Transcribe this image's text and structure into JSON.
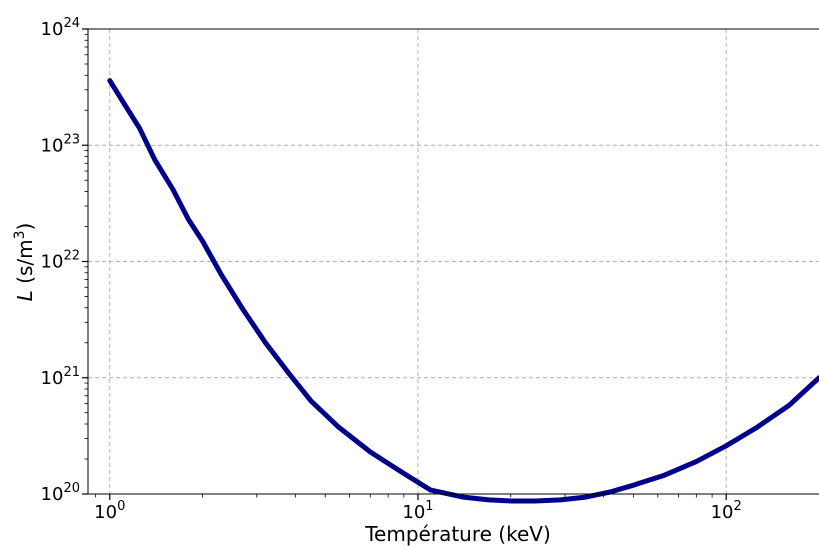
{
  "chart_data": {
    "type": "line",
    "title": "",
    "xlabel": "Température (keV)",
    "ylabel": {
      "italic": "L",
      "text": " (s/m",
      "sup": "3",
      "close": ")"
    },
    "xscale": "log",
    "yscale": "log",
    "xlim": [
      0.85,
      200
    ],
    "ylim": [
      1e+20,
      1e+24
    ],
    "grid": true,
    "legend": "none",
    "line_color": "#00008b",
    "x_ticks": [
      {
        "base": "10",
        "exp": "0",
        "value": 1
      },
      {
        "base": "10",
        "exp": "1",
        "value": 10
      },
      {
        "base": "10",
        "exp": "2",
        "value": 100
      }
    ],
    "y_ticks": [
      {
        "base": "10",
        "exp": "20",
        "value": 1e+20
      },
      {
        "base": "10",
        "exp": "21",
        "value": 1e+21
      },
      {
        "base": "10",
        "exp": "22",
        "value": 1e+22
      },
      {
        "base": "10",
        "exp": "23",
        "value": 1e+23
      },
      {
        "base": "10",
        "exp": "24",
        "value": 1e+24
      }
    ],
    "series": [
      {
        "x": [
          1.0,
          1.1,
          1.25,
          1.4,
          1.6,
          1.8,
          2.0,
          2.3,
          2.7,
          3.2,
          3.8,
          4.5,
          5.5,
          7.0,
          9.0,
          11,
          14,
          17,
          20,
          24,
          29,
          35,
          42,
          50,
          63,
          80,
          100,
          125,
          160,
          200
        ],
        "y": [
          3.6e+23,
          2.4e+23,
          1.4e+23,
          7.5e+22,
          4.2e+22,
          2.3e+22,
          1.5e+22,
          7.7e+21,
          3.9e+21,
          2e+21,
          1.1e+21,
          6.3e+20,
          3.8e+20,
          2.3e+20,
          1.5e+20,
          1.08e+20,
          9.4e+19,
          8.9e+19,
          8.7e+19,
          8.7e+19,
          8.9e+19,
          9.4e+19,
          1.04e+20,
          1.19e+20,
          1.45e+20,
          1.9e+20,
          2.6e+20,
          3.7e+20,
          5.8e+20,
          1e+21
        ]
      }
    ]
  }
}
